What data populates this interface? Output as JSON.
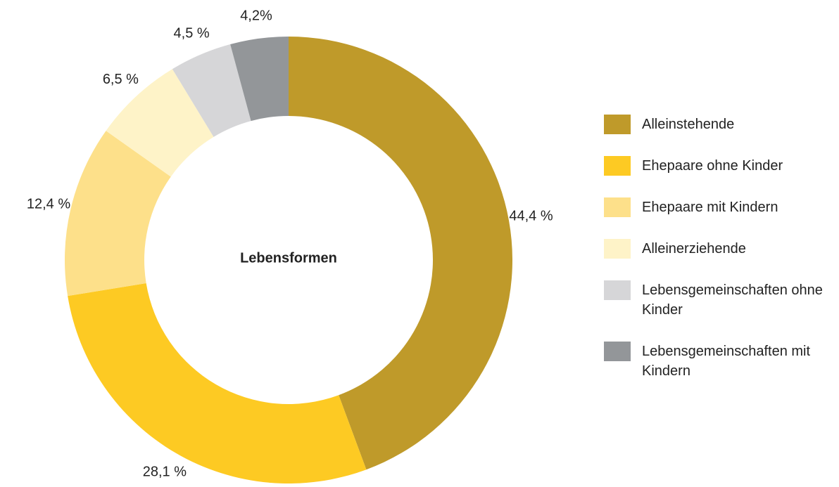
{
  "chart_data": {
    "type": "pie",
    "title": "Lebensformen",
    "categories": [
      "Alleinstehende",
      "Ehepaare ohne Kinder",
      "Ehepaare mit Kindern",
      "Alleinerziehende",
      "Lebensgemeinschaften ohne Kinder",
      "Lebensgemeinschaften mit Kindern"
    ],
    "values": [
      44.4,
      28.1,
      12.4,
      6.5,
      4.5,
      4.2
    ],
    "value_labels": [
      "44,4 %",
      "28,1 %",
      "12,4 %",
      "6,5 %",
      "4,5 %",
      "4,2%"
    ],
    "colors": [
      "#bf9a2a",
      "#fdca23",
      "#fde08a",
      "#fef3c8",
      "#d6d6d8",
      "#939699"
    ],
    "donut": true,
    "legend": "right"
  }
}
